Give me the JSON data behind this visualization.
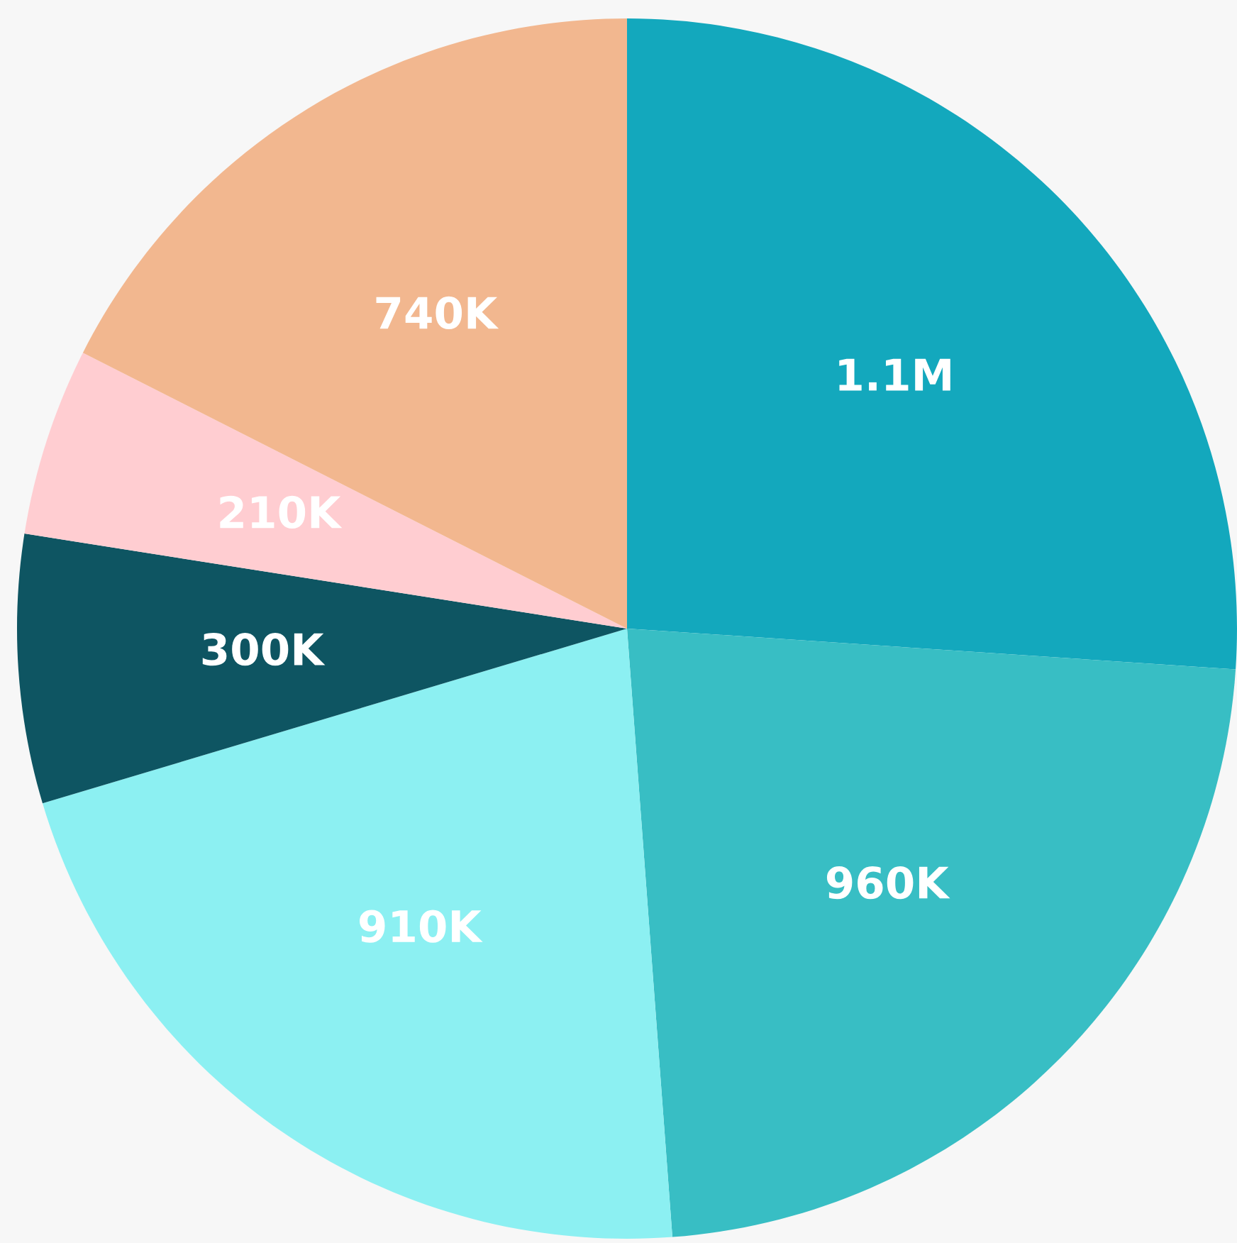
{
  "chart_data": {
    "type": "pie",
    "categories": [
      null,
      null,
      null,
      null,
      null,
      null
    ],
    "values": [
      1100000,
      960000,
      910000,
      300000,
      210000,
      740000
    ],
    "value_labels": [
      "1.1M",
      "960K",
      "910K",
      "300K",
      "210K",
      "740K"
    ],
    "colors": [
      "#13a8bd",
      "#38bec4",
      "#8cf0f2",
      "#0e5562",
      "#ffcdd1",
      "#f2b78f"
    ],
    "legend": false
  }
}
